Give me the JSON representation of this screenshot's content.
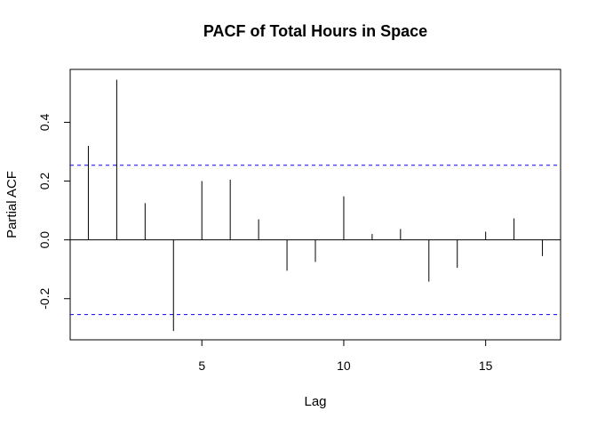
{
  "chart_data": {
    "type": "bar",
    "title": "PACF of Total Hours in Space",
    "xlabel": "Lag",
    "ylabel": "Partial ACF",
    "x": [
      1,
      2,
      3,
      4,
      5,
      6,
      7,
      8,
      9,
      10,
      11,
      12,
      13,
      14,
      15,
      16,
      17
    ],
    "values": [
      0.32,
      0.545,
      0.125,
      -0.31,
      0.2,
      0.205,
      0.07,
      -0.105,
      -0.075,
      0.148,
      0.02,
      0.037,
      -0.142,
      -0.095,
      0.028,
      0.073,
      -0.055
    ],
    "xlim": [
      0.36,
      17.64
    ],
    "ylim": [
      -0.34,
      0.58
    ],
    "xticks": [
      5,
      10,
      15
    ],
    "xtick_labels": [
      "5",
      "10",
      "15"
    ],
    "yticks": [
      -0.2,
      0.0,
      0.2,
      0.4
    ],
    "ytick_labels": [
      "-0.2",
      "0.0",
      "0.2",
      "0.4"
    ],
    "confidence_bounds": [
      0.254,
      -0.254
    ],
    "zero_line": 0,
    "grid": false,
    "colors": {
      "bars": "#000000",
      "bounds": "#0000ff",
      "axes": "#000000"
    }
  }
}
